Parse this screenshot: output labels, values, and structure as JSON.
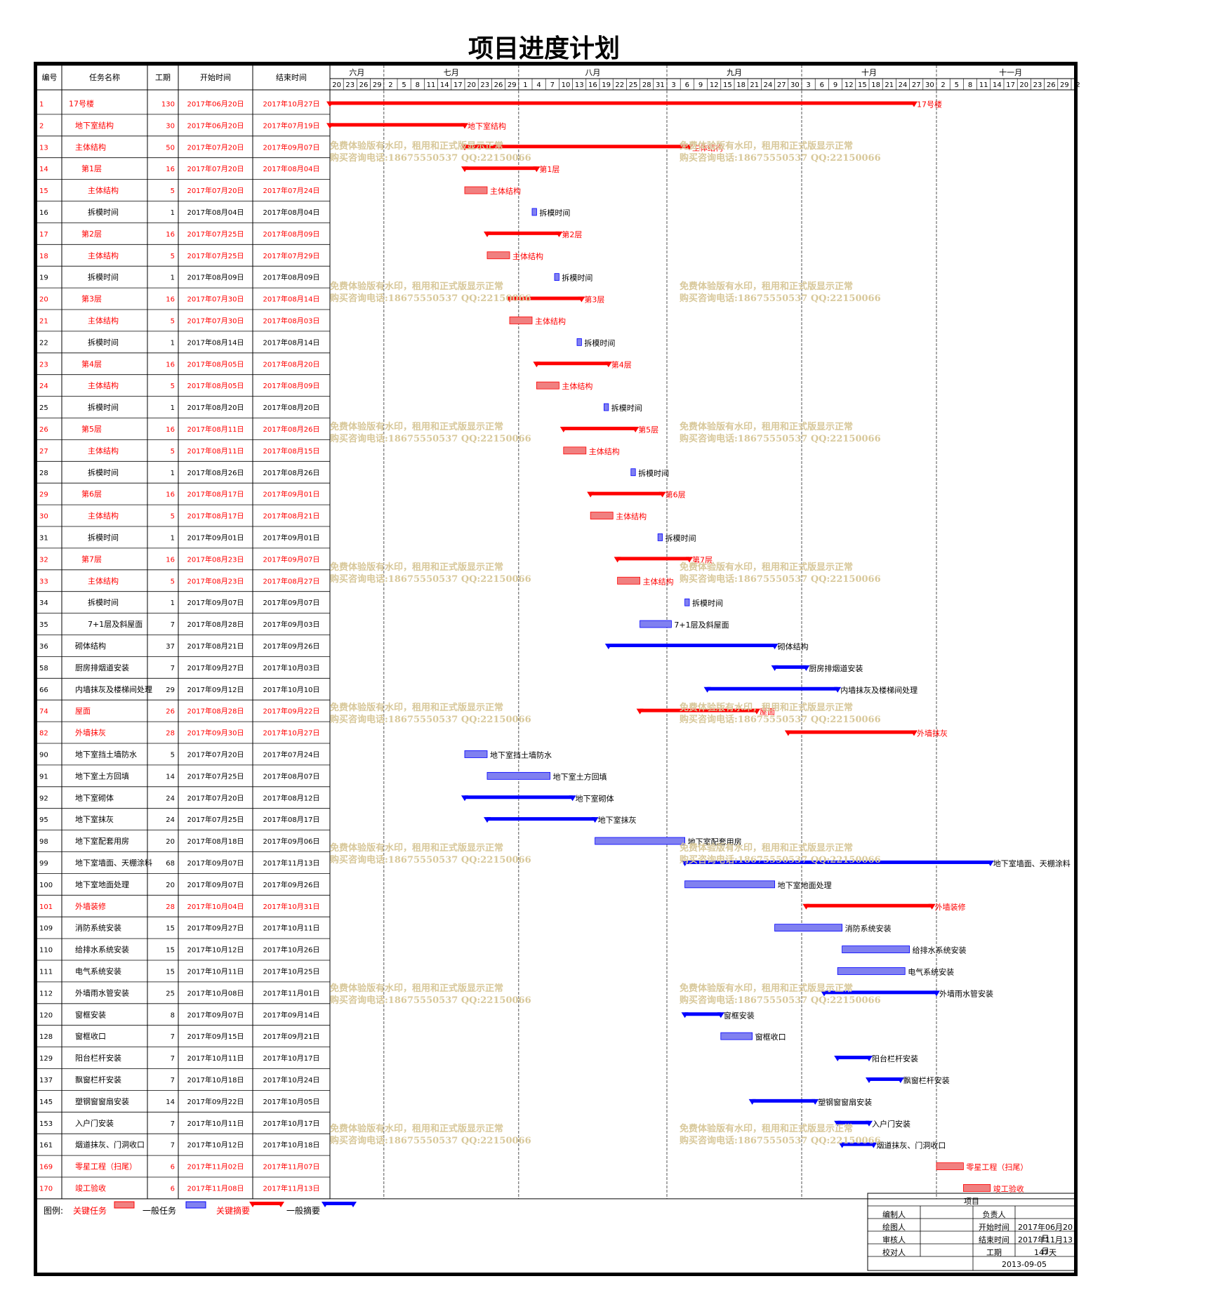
{
  "title": "项目进度计划",
  "headers": {
    "id": "编号",
    "name": "任务名称",
    "duration": "工期",
    "start": "开始时间",
    "end": "结束时间"
  },
  "months": [
    {
      "label": "六月",
      "days": [
        "20",
        "23",
        "26",
        "29"
      ]
    },
    {
      "label": "七月",
      "days": [
        "2",
        "5",
        "8",
        "11",
        "14",
        "17",
        "20",
        "23",
        "26",
        "29"
      ]
    },
    {
      "label": "八月",
      "days": [
        "1",
        "4",
        "7",
        "10",
        "13",
        "16",
        "19",
        "22",
        "25",
        "28",
        "31"
      ]
    },
    {
      "label": "九月",
      "days": [
        "3",
        "6",
        "9",
        "12",
        "15",
        "18",
        "21",
        "24",
        "27",
        "30"
      ]
    },
    {
      "label": "十月",
      "days": [
        "3",
        "6",
        "9",
        "12",
        "15",
        "18",
        "21",
        "24",
        "27",
        "30"
      ]
    },
    {
      "label": "十一月",
      "days": [
        "2",
        "5",
        "8",
        "11",
        "14",
        "17",
        "20",
        "23",
        "26",
        "29",
        "2"
      ]
    }
  ],
  "colors": {
    "critical": "#ff0000",
    "critical_fill": "#f08080",
    "normal": "#0000ff",
    "normal_fill": "#8080f0",
    "watermark": "#d8c89a"
  },
  "watermark": {
    "line1": "免费体验版有水印，租用和正式版显示正常",
    "line2": "购买咨询电话:18675550537 QQ:22150066"
  },
  "chart_data": {
    "type": "gantt",
    "title": "项目进度计划",
    "x_range": [
      "2017-06-20",
      "2017-12-02"
    ],
    "tasks": [
      {
        "id": "1",
        "name": "17号楼",
        "duration": 130,
        "start": "2017年06月20日",
        "end": "2017年10月27日",
        "s": "2017-06-20",
        "e": "2017-10-27",
        "critical": true,
        "kind": "summary",
        "indent": 0
      },
      {
        "id": "2",
        "name": "地下室结构",
        "duration": 30,
        "start": "2017年06月20日",
        "end": "2017年07月19日",
        "s": "2017-06-20",
        "e": "2017-07-19",
        "critical": true,
        "kind": "summary",
        "indent": 1
      },
      {
        "id": "13",
        "name": "主体结构",
        "duration": 50,
        "start": "2017年07月20日",
        "end": "2017年09月07日",
        "s": "2017-07-20",
        "e": "2017-09-07",
        "critical": true,
        "kind": "summary",
        "indent": 1
      },
      {
        "id": "14",
        "name": "第1层",
        "duration": 16,
        "start": "2017年07月20日",
        "end": "2017年08月04日",
        "s": "2017-07-20",
        "e": "2017-08-04",
        "critical": true,
        "kind": "summary",
        "indent": 2
      },
      {
        "id": "15",
        "name": "主体结构",
        "duration": 5,
        "start": "2017年07月20日",
        "end": "2017年07月24日",
        "s": "2017-07-20",
        "e": "2017-07-24",
        "critical": true,
        "kind": "task",
        "indent": 3
      },
      {
        "id": "16",
        "name": "拆模时间",
        "duration": 1,
        "start": "2017年08月04日",
        "end": "2017年08月04日",
        "s": "2017-08-04",
        "e": "2017-08-04",
        "critical": false,
        "kind": "task",
        "indent": 3
      },
      {
        "id": "17",
        "name": "第2层",
        "duration": 16,
        "start": "2017年07月25日",
        "end": "2017年08月09日",
        "s": "2017-07-25",
        "e": "2017-08-09",
        "critical": true,
        "kind": "summary",
        "indent": 2
      },
      {
        "id": "18",
        "name": "主体结构",
        "duration": 5,
        "start": "2017年07月25日",
        "end": "2017年07月29日",
        "s": "2017-07-25",
        "e": "2017-07-29",
        "critical": true,
        "kind": "task",
        "indent": 3
      },
      {
        "id": "19",
        "name": "拆模时间",
        "duration": 1,
        "start": "2017年08月09日",
        "end": "2017年08月09日",
        "s": "2017-08-09",
        "e": "2017-08-09",
        "critical": false,
        "kind": "task",
        "indent": 3
      },
      {
        "id": "20",
        "name": "第3层",
        "duration": 16,
        "start": "2017年07月30日",
        "end": "2017年08月14日",
        "s": "2017-07-30",
        "e": "2017-08-14",
        "critical": true,
        "kind": "summary",
        "indent": 2
      },
      {
        "id": "21",
        "name": "主体结构",
        "duration": 5,
        "start": "2017年07月30日",
        "end": "2017年08月03日",
        "s": "2017-07-30",
        "e": "2017-08-03",
        "critical": true,
        "kind": "task",
        "indent": 3
      },
      {
        "id": "22",
        "name": "拆模时间",
        "duration": 1,
        "start": "2017年08月14日",
        "end": "2017年08月14日",
        "s": "2017-08-14",
        "e": "2017-08-14",
        "critical": false,
        "kind": "task",
        "indent": 3
      },
      {
        "id": "23",
        "name": "第4层",
        "duration": 16,
        "start": "2017年08月05日",
        "end": "2017年08月20日",
        "s": "2017-08-05",
        "e": "2017-08-20",
        "critical": true,
        "kind": "summary",
        "indent": 2
      },
      {
        "id": "24",
        "name": "主体结构",
        "duration": 5,
        "start": "2017年08月05日",
        "end": "2017年08月09日",
        "s": "2017-08-05",
        "e": "2017-08-09",
        "critical": true,
        "kind": "task",
        "indent": 3
      },
      {
        "id": "25",
        "name": "拆模时间",
        "duration": 1,
        "start": "2017年08月20日",
        "end": "2017年08月20日",
        "s": "2017-08-20",
        "e": "2017-08-20",
        "critical": false,
        "kind": "task",
        "indent": 3
      },
      {
        "id": "26",
        "name": "第5层",
        "duration": 16,
        "start": "2017年08月11日",
        "end": "2017年08月26日",
        "s": "2017-08-11",
        "e": "2017-08-26",
        "critical": true,
        "kind": "summary",
        "indent": 2
      },
      {
        "id": "27",
        "name": "主体结构",
        "duration": 5,
        "start": "2017年08月11日",
        "end": "2017年08月15日",
        "s": "2017-08-11",
        "e": "2017-08-15",
        "critical": true,
        "kind": "task",
        "indent": 3
      },
      {
        "id": "28",
        "name": "拆模时间",
        "duration": 1,
        "start": "2017年08月26日",
        "end": "2017年08月26日",
        "s": "2017-08-26",
        "e": "2017-08-26",
        "critical": false,
        "kind": "task",
        "indent": 3
      },
      {
        "id": "29",
        "name": "第6层",
        "duration": 16,
        "start": "2017年08月17日",
        "end": "2017年09月01日",
        "s": "2017-08-17",
        "e": "2017-09-01",
        "critical": true,
        "kind": "summary",
        "indent": 2
      },
      {
        "id": "30",
        "name": "主体结构",
        "duration": 5,
        "start": "2017年08月17日",
        "end": "2017年08月21日",
        "s": "2017-08-17",
        "e": "2017-08-21",
        "critical": true,
        "kind": "task",
        "indent": 3
      },
      {
        "id": "31",
        "name": "拆模时间",
        "duration": 1,
        "start": "2017年09月01日",
        "end": "2017年09月01日",
        "s": "2017-09-01",
        "e": "2017-09-01",
        "critical": false,
        "kind": "task",
        "indent": 3
      },
      {
        "id": "32",
        "name": "第7层",
        "duration": 16,
        "start": "2017年08月23日",
        "end": "2017年09月07日",
        "s": "2017-08-23",
        "e": "2017-09-07",
        "critical": true,
        "kind": "summary",
        "indent": 2
      },
      {
        "id": "33",
        "name": "主体结构",
        "duration": 5,
        "start": "2017年08月23日",
        "end": "2017年08月27日",
        "s": "2017-08-23",
        "e": "2017-08-27",
        "critical": true,
        "kind": "task",
        "indent": 3
      },
      {
        "id": "34",
        "name": "拆模时间",
        "duration": 1,
        "start": "2017年09月07日",
        "end": "2017年09月07日",
        "s": "2017-09-07",
        "e": "2017-09-07",
        "critical": false,
        "kind": "task",
        "indent": 3
      },
      {
        "id": "35",
        "name": "7+1层及斜屋面",
        "duration": 7,
        "start": "2017年08月28日",
        "end": "2017年09月03日",
        "s": "2017-08-28",
        "e": "2017-09-03",
        "critical": false,
        "kind": "task",
        "indent": 3
      },
      {
        "id": "36",
        "name": "砌体结构",
        "duration": 37,
        "start": "2017年08月21日",
        "end": "2017年09月26日",
        "s": "2017-08-21",
        "e": "2017-09-26",
        "critical": false,
        "kind": "summary",
        "indent": 1
      },
      {
        "id": "58",
        "name": "厨房排烟道安装",
        "duration": 7,
        "start": "2017年09月27日",
        "end": "2017年10月03日",
        "s": "2017-09-27",
        "e": "2017-10-03",
        "critical": false,
        "kind": "summary",
        "indent": 1
      },
      {
        "id": "66",
        "name": "内墙抹灰及楼梯间处理",
        "duration": 29,
        "start": "2017年09月12日",
        "end": "2017年10月10日",
        "s": "2017-09-12",
        "e": "2017-10-10",
        "critical": false,
        "kind": "summary",
        "indent": 1
      },
      {
        "id": "74",
        "name": "屋面",
        "duration": 26,
        "start": "2017年08月28日",
        "end": "2017年09月22日",
        "s": "2017-08-28",
        "e": "2017-09-22",
        "critical": true,
        "kind": "summary",
        "indent": 1
      },
      {
        "id": "82",
        "name": "外墙抹灰",
        "duration": 28,
        "start": "2017年09月30日",
        "end": "2017年10月27日",
        "s": "2017-09-30",
        "e": "2017-10-27",
        "critical": true,
        "kind": "summary",
        "indent": 1
      },
      {
        "id": "90",
        "name": "地下室挡土墙防水",
        "duration": 5,
        "start": "2017年07月20日",
        "end": "2017年07月24日",
        "s": "2017-07-20",
        "e": "2017-07-24",
        "critical": false,
        "kind": "task",
        "indent": 1
      },
      {
        "id": "91",
        "name": "地下室土方回填",
        "duration": 14,
        "start": "2017年07月25日",
        "end": "2017年08月07日",
        "s": "2017-07-25",
        "e": "2017-08-07",
        "critical": false,
        "kind": "task",
        "indent": 1
      },
      {
        "id": "92",
        "name": "地下室砌体",
        "duration": 24,
        "start": "2017年07月20日",
        "end": "2017年08月12日",
        "s": "2017-07-20",
        "e": "2017-08-12",
        "critical": false,
        "kind": "summary",
        "indent": 1
      },
      {
        "id": "95",
        "name": "地下室抹灰",
        "duration": 24,
        "start": "2017年07月25日",
        "end": "2017年08月17日",
        "s": "2017-07-25",
        "e": "2017-08-17",
        "critical": false,
        "kind": "summary",
        "indent": 1
      },
      {
        "id": "98",
        "name": "地下室配套用房",
        "duration": 20,
        "start": "2017年08月18日",
        "end": "2017年09月06日",
        "s": "2017-08-18",
        "e": "2017-09-06",
        "critical": false,
        "kind": "task",
        "indent": 1
      },
      {
        "id": "99",
        "name": "地下室墙面、天棚涂料",
        "duration": 68,
        "start": "2017年09月07日",
        "end": "2017年11月13日",
        "s": "2017-09-07",
        "e": "2017-11-13",
        "critical": false,
        "kind": "summary",
        "indent": 1
      },
      {
        "id": "100",
        "name": "地下室地面处理",
        "duration": 20,
        "start": "2017年09月07日",
        "end": "2017年09月26日",
        "s": "2017-09-07",
        "e": "2017-09-26",
        "critical": false,
        "kind": "task",
        "indent": 1
      },
      {
        "id": "101",
        "name": "外墙装修",
        "duration": 28,
        "start": "2017年10月04日",
        "end": "2017年10月31日",
        "s": "2017-10-04",
        "e": "2017-10-31",
        "critical": true,
        "kind": "summary",
        "indent": 1
      },
      {
        "id": "109",
        "name": "消防系统安装",
        "duration": 15,
        "start": "2017年09月27日",
        "end": "2017年10月11日",
        "s": "2017-09-27",
        "e": "2017-10-11",
        "critical": false,
        "kind": "task",
        "indent": 1
      },
      {
        "id": "110",
        "name": "给排水系统安装",
        "duration": 15,
        "start": "2017年10月12日",
        "end": "2017年10月26日",
        "s": "2017-10-12",
        "e": "2017-10-26",
        "critical": false,
        "kind": "task",
        "indent": 1
      },
      {
        "id": "111",
        "name": "电气系统安装",
        "duration": 15,
        "start": "2017年10月11日",
        "end": "2017年10月25日",
        "s": "2017-10-11",
        "e": "2017-10-25",
        "critical": false,
        "kind": "task",
        "indent": 1
      },
      {
        "id": "112",
        "name": "外墙雨水管安装",
        "duration": 25,
        "start": "2017年10月08日",
        "end": "2017年11月01日",
        "s": "2017-10-08",
        "e": "2017-11-01",
        "critical": false,
        "kind": "summary",
        "indent": 1
      },
      {
        "id": "120",
        "name": "窗框安装",
        "duration": 8,
        "start": "2017年09月07日",
        "end": "2017年09月14日",
        "s": "2017-09-07",
        "e": "2017-09-14",
        "critical": false,
        "kind": "summary",
        "indent": 1
      },
      {
        "id": "128",
        "name": "窗框收口",
        "duration": 7,
        "start": "2017年09月15日",
        "end": "2017年09月21日",
        "s": "2017-09-15",
        "e": "2017-09-21",
        "critical": false,
        "kind": "task",
        "indent": 1
      },
      {
        "id": "129",
        "name": "阳台栏杆安装",
        "duration": 7,
        "start": "2017年10月11日",
        "end": "2017年10月17日",
        "s": "2017-10-11",
        "e": "2017-10-17",
        "critical": false,
        "kind": "summary",
        "indent": 1
      },
      {
        "id": "137",
        "name": "飘窗栏杆安装",
        "duration": 7,
        "start": "2017年10月18日",
        "end": "2017年10月24日",
        "s": "2017-10-18",
        "e": "2017-10-24",
        "critical": false,
        "kind": "summary",
        "indent": 1
      },
      {
        "id": "145",
        "name": "塑钢窗窗扇安装",
        "duration": 14,
        "start": "2017年09月22日",
        "end": "2017年10月05日",
        "s": "2017-09-22",
        "e": "2017-10-05",
        "critical": false,
        "kind": "summary",
        "indent": 1
      },
      {
        "id": "153",
        "name": "入户门安装",
        "duration": 7,
        "start": "2017年10月11日",
        "end": "2017年10月17日",
        "s": "2017-10-11",
        "e": "2017-10-17",
        "critical": false,
        "kind": "summary",
        "indent": 1
      },
      {
        "id": "161",
        "name": "烟道抹灰、门洞收口",
        "duration": 7,
        "start": "2017年10月12日",
        "end": "2017年10月18日",
        "s": "2017-10-12",
        "e": "2017-10-18",
        "critical": false,
        "kind": "summary",
        "indent": 1
      },
      {
        "id": "169",
        "name": "零星工程（扫尾）",
        "duration": 6,
        "start": "2017年11月02日",
        "end": "2017年11月07日",
        "s": "2017-11-02",
        "e": "2017-11-07",
        "critical": true,
        "kind": "task",
        "indent": 1
      },
      {
        "id": "170",
        "name": "竣工验收",
        "duration": 6,
        "start": "2017年11月08日",
        "end": "2017年11月13日",
        "s": "2017-11-08",
        "e": "2017-11-13",
        "critical": true,
        "kind": "task",
        "indent": 1
      }
    ]
  },
  "legend": {
    "label": "图例:",
    "critical_task": "关键任务",
    "normal_task": "一般任务",
    "critical_summary": "关键摘要",
    "normal_summary": "一般摘要"
  },
  "info": {
    "header": "项目",
    "compiler": "编制人",
    "owner": "负责人",
    "drafter": "绘图人",
    "start_label": "开始时间",
    "start_value": "2017年06月20日",
    "reviewer": "审核人",
    "end_label": "结束时间",
    "end_value": "2017年11月13日",
    "checker": "校对人",
    "duration_label": "工期",
    "duration_value": "147天",
    "date": "2013-09-05"
  }
}
